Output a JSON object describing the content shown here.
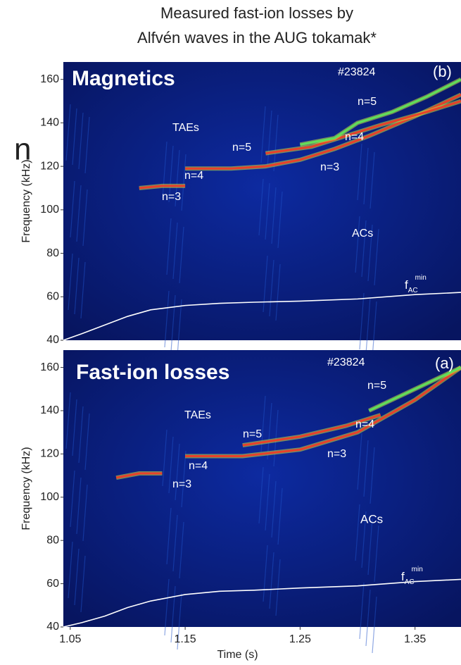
{
  "stray_text": "n",
  "chart_data": [
    {
      "type": "spectrogram",
      "title": [
        "Measured fast-ion losses by",
        "Alfvén waves in the AUG tokamak*"
      ],
      "ylabel": "Frequency (kHz)",
      "ylim": [
        40,
        168
      ],
      "yticks": [
        40,
        60,
        80,
        100,
        120,
        140,
        160
      ],
      "xlim": [
        1.044,
        1.39
      ],
      "annotations": [
        "Magnetics",
        "#23824",
        "(b)",
        "TAEs",
        "n=5",
        "n=4",
        "n=3",
        "n=5",
        "n=4",
        "n=3",
        "ACs",
        {
          "text": "f",
          "sub": "AC",
          "sup": "min"
        }
      ],
      "series": [
        {
          "color": "#ffffff",
          "x": [
            1.044,
            1.06,
            1.08,
            1.1,
            1.12,
            1.15,
            1.18,
            1.21,
            1.25,
            1.3,
            1.35,
            1.39
          ],
          "values": [
            40,
            43,
            47,
            51,
            54,
            56,
            57,
            57.5,
            58,
            59,
            61,
            62
          ]
        },
        {
          "color": "#e8402a",
          "x": [
            1.11,
            1.13,
            1.15
          ],
          "values": [
            110,
            111,
            111
          ]
        },
        {
          "color": "#e8402a",
          "x": [
            1.15,
            1.19,
            1.22,
            1.25,
            1.28,
            1.31,
            1.35,
            1.39
          ],
          "values": [
            119,
            119,
            120,
            123,
            128,
            134,
            143,
            153
          ]
        },
        {
          "color": "#e8402a",
          "x": [
            1.22,
            1.26,
            1.29,
            1.32,
            1.36,
            1.39
          ],
          "values": [
            126,
            129,
            134,
            139,
            145,
            150
          ]
        },
        {
          "color": "#5fe05a",
          "x": [
            1.25,
            1.28,
            1.3,
            1.33,
            1.36,
            1.39
          ],
          "values": [
            130,
            133,
            140,
            145,
            152,
            160
          ]
        }
      ]
    },
    {
      "type": "spectrogram",
      "ylabel": "Frequency (kHz)",
      "xlabel": "Time (s)",
      "ylim": [
        40,
        168
      ],
      "yticks": [
        40,
        60,
        80,
        100,
        120,
        140,
        160
      ],
      "xlim": [
        1.044,
        1.39
      ],
      "xticks": [
        1.05,
        1.15,
        1.25,
        1.35
      ],
      "annotations": [
        "Fast-ion losses",
        "#23824",
        "(a)",
        "TAEs",
        "n=5",
        "n=4",
        "n=3",
        "n=5",
        "n=4",
        "n=3",
        "ACs",
        {
          "text": "f",
          "sub": "AC",
          "sup": "min"
        }
      ],
      "series": [
        {
          "color": "#ffffff",
          "x": [
            1.044,
            1.06,
            1.08,
            1.1,
            1.12,
            1.15,
            1.18,
            1.21,
            1.25,
            1.3,
            1.35,
            1.39
          ],
          "values": [
            40,
            42,
            45,
            49,
            52,
            55,
            56.5,
            57,
            58,
            59,
            61,
            62
          ]
        },
        {
          "color": "#e8402a",
          "x": [
            1.09,
            1.11,
            1.13
          ],
          "values": [
            109,
            111,
            111
          ]
        },
        {
          "color": "#e8402a",
          "x": [
            1.15,
            1.2,
            1.25,
            1.3,
            1.35,
            1.39
          ],
          "values": [
            119,
            119,
            122,
            130,
            145,
            160
          ]
        },
        {
          "color": "#e8402a",
          "x": [
            1.2,
            1.25,
            1.29,
            1.32
          ],
          "values": [
            124,
            128,
            133,
            138
          ]
        },
        {
          "color": "#5fe05a",
          "x": [
            1.31,
            1.35,
            1.39
          ],
          "values": [
            140,
            150,
            160
          ]
        }
      ]
    }
  ]
}
